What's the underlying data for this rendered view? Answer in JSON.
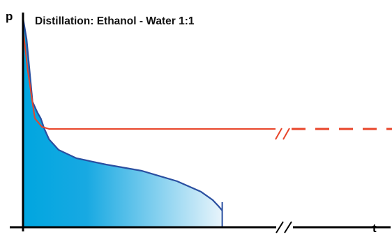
{
  "chart_data": {
    "type": "area",
    "title": "Distillation: Ethanol - Water 1:1",
    "xlabel": "t",
    "ylabel": "p",
    "grid": false,
    "legend": "none",
    "axis_break": "x",
    "series": [
      {
        "color": "#e8452a",
        "line_style": "solid-then-dashed-after-break",
        "x": [
          0.0,
          0.04,
          0.1,
          0.16,
          0.22,
          1.0,
          1.8,
          3.0
        ],
        "y": [
          0.95,
          0.75,
          0.52,
          0.48,
          0.47,
          0.47,
          0.47,
          0.47
        ]
      },
      {
        "color": "#2a4fa0",
        "fill_colors": [
          "#00a6e0",
          "#e8f4fb"
        ],
        "end_tick_x": 1.68,
        "x": [
          0.0,
          0.03,
          0.08,
          0.12,
          0.15,
          0.18,
          0.22,
          0.3,
          0.45,
          0.7,
          1.0,
          1.3,
          1.5,
          1.6,
          1.65,
          1.68
        ],
        "y": [
          1.0,
          0.9,
          0.6,
          0.55,
          0.52,
          0.47,
          0.42,
          0.37,
          0.33,
          0.3,
          0.27,
          0.22,
          0.17,
          0.13,
          0.1,
          0.08
        ]
      }
    ]
  }
}
